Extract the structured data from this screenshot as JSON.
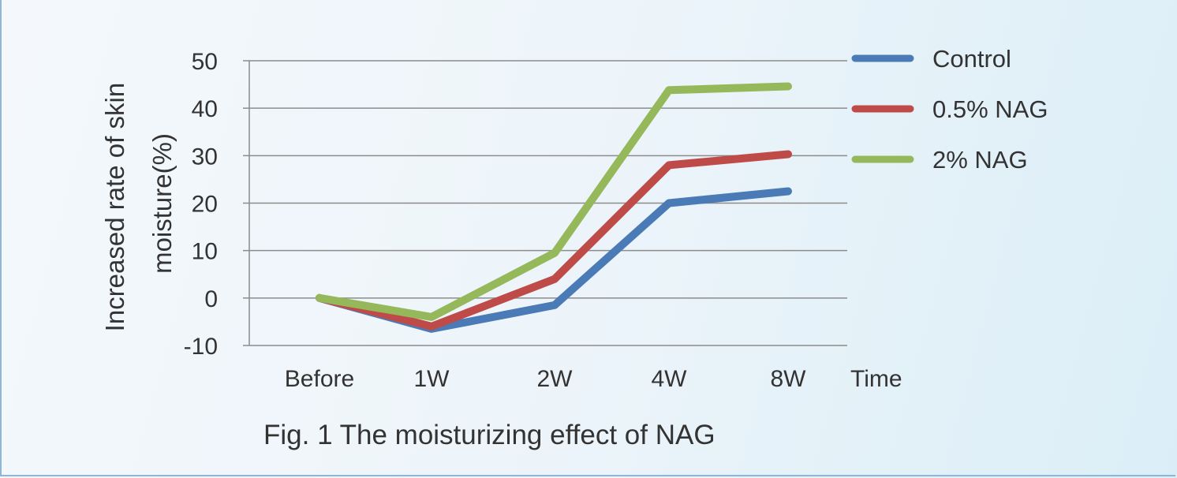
{
  "chart_data": {
    "type": "line",
    "categories": [
      "Before",
      "1W",
      "2W",
      "4W",
      "8W"
    ],
    "series": [
      {
        "name": "Control",
        "color": "#4a7bb7",
        "values": [
          0,
          -6.5,
          -1.5,
          20,
          22.5
        ]
      },
      {
        "name": "0.5% NAG",
        "color": "#bf4b48",
        "values": [
          0,
          -6,
          4,
          28,
          30.3
        ]
      },
      {
        "name": "2% NAG",
        "color": "#94b85a",
        "values": [
          0,
          -4,
          9.5,
          43.8,
          44.6
        ]
      }
    ],
    "yticks": [
      "-10",
      "0",
      "10",
      "20",
      "30",
      "40",
      "50"
    ],
    "ylim": [
      -10,
      50
    ],
    "ylabel_line1": "Increased rate of skin",
    "ylabel_line2": "moisture(%)",
    "xlabel": "Time",
    "grid": true,
    "legend": "top-right"
  },
  "caption": "Fig. 1 The moisturizing effect of NAG"
}
